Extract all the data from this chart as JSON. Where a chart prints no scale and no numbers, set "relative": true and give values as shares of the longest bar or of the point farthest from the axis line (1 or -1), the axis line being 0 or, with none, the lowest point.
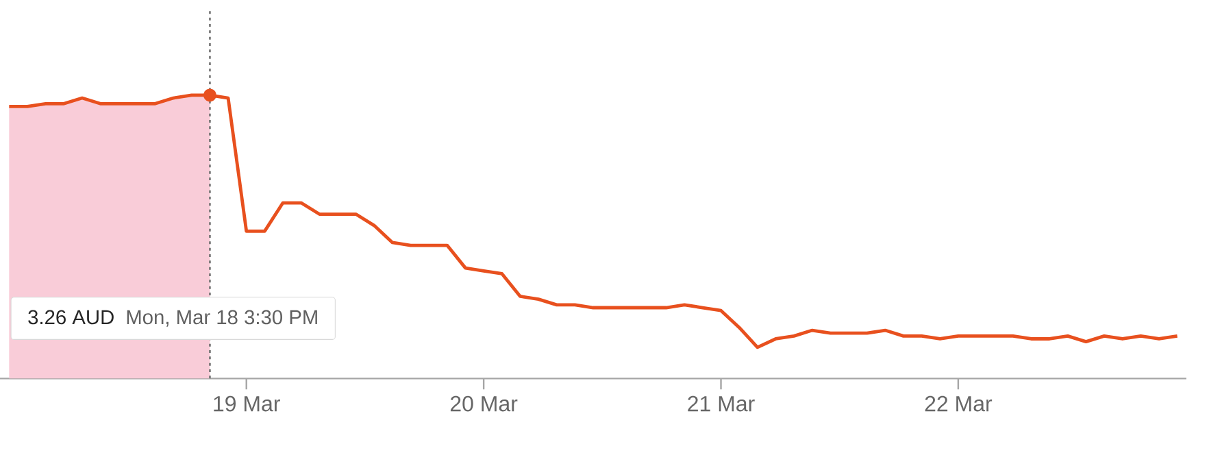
{
  "chart_data": {
    "type": "line",
    "relative": true,
    "categories": [
      null,
      null,
      null,
      null,
      null,
      null,
      null,
      null,
      null,
      null,
      null,
      null,
      null,
      "19 Mar",
      null,
      null,
      null,
      null,
      null,
      null,
      null,
      null,
      null,
      null,
      null,
      null,
      "20 Mar",
      null,
      null,
      null,
      null,
      null,
      null,
      null,
      null,
      null,
      null,
      null,
      null,
      "21 Mar",
      null,
      null,
      null,
      null,
      null,
      null,
      null,
      null,
      null,
      null,
      null,
      null,
      "22 Mar",
      null,
      null,
      null,
      null,
      null,
      null,
      null,
      null,
      null,
      null,
      null,
      null
    ],
    "series": [
      {
        "type": "area",
        "color": "#f9ccd8",
        "values": [
          0.96,
          0.96,
          0.97,
          0.97,
          0.99,
          0.97,
          0.97,
          0.97,
          0.97,
          0.99,
          1.0,
          1.0,
          null,
          null,
          null,
          null,
          null,
          null,
          null,
          null,
          null,
          null,
          null,
          null,
          null,
          null,
          null,
          null,
          null,
          null,
          null,
          null,
          null,
          null,
          null,
          null,
          null,
          null,
          null,
          null,
          null,
          null,
          null,
          null,
          null,
          null,
          null,
          null,
          null,
          null,
          null,
          null,
          null,
          null,
          null,
          null,
          null,
          null,
          null,
          null,
          null,
          null,
          null,
          null,
          null
        ]
      },
      {
        "color": "#e8501e",
        "values": [
          0.96,
          0.96,
          0.97,
          0.97,
          0.99,
          0.97,
          0.97,
          0.97,
          0.97,
          0.99,
          1.0,
          1.0,
          0.99,
          0.52,
          0.52,
          0.62,
          0.62,
          0.58,
          0.58,
          0.58,
          0.54,
          0.48,
          0.47,
          0.47,
          0.47,
          0.39,
          0.38,
          0.37,
          0.29,
          0.28,
          0.26,
          0.26,
          0.25,
          0.25,
          0.25,
          0.25,
          0.25,
          0.26,
          0.25,
          0.24,
          0.18,
          0.11,
          0.14,
          0.15,
          0.17,
          0.16,
          0.16,
          0.16,
          0.17,
          0.15,
          0.15,
          0.14,
          0.15,
          0.15,
          0.15,
          0.15,
          0.14,
          0.14,
          0.15,
          0.13,
          0.15,
          0.14,
          0.15,
          0.14,
          0.15
        ]
      }
    ],
    "annotations": [
      "3.26 AUD",
      "Mon, Mar 18 3:30 PM"
    ]
  }
}
